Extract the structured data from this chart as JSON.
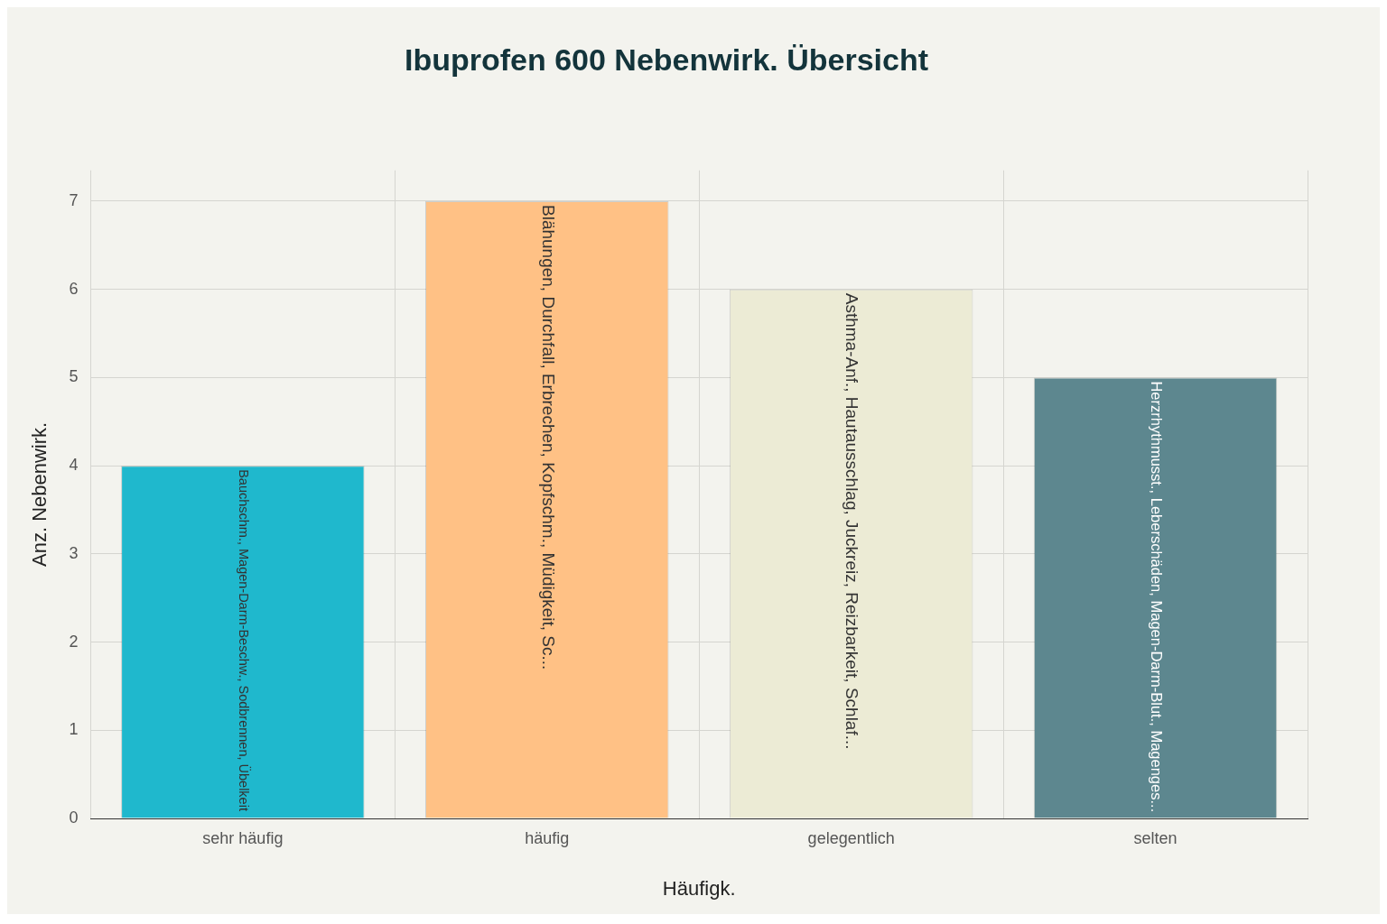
{
  "chart_data": {
    "type": "bar",
    "title": "Ibuprofen 600 Nebenwirk. Übersicht",
    "xlabel": "Häufigk.",
    "ylabel": "Anz. Nebenwirk.",
    "categories": [
      "sehr häufig",
      "häufig",
      "gelegentlich",
      "selten"
    ],
    "values": [
      4,
      7,
      6,
      5
    ],
    "colors": [
      "#1fb8cd",
      "#ffc185",
      "#eceBd5",
      "#5d878f"
    ],
    "value_labels": [
      "Bauchschm., Magen-Darm-Beschw., Sodbrennen, Übelkeit",
      "Blähungen, Durchfall, Erbrechen, Kopfschm., Müdigkeit, Sc...",
      "Asthma-Anf., Hautausschlag, Juckreiz, Reizbarkeit, Schlaf...",
      "Herzrhythmusst., Leberschäden, Magen-Darm-Blut., Magenges..."
    ],
    "ylim": [
      0,
      7.35
    ],
    "yticks": [
      0,
      1,
      2,
      3,
      4,
      5,
      6,
      7
    ],
    "grid": true,
    "legend": false
  }
}
